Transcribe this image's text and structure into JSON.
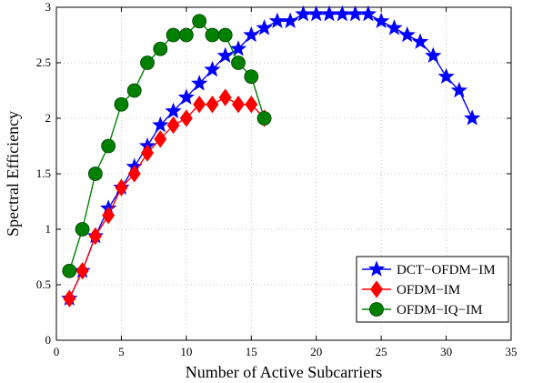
{
  "chart_data": {
    "type": "line",
    "xlabel": "Number of Active Subcarriers",
    "ylabel": "Spectral Efficiency",
    "xlim": [
      0,
      35
    ],
    "ylim": [
      0,
      3
    ],
    "xticks": [
      0,
      5,
      10,
      15,
      20,
      25,
      30,
      35
    ],
    "yticks": [
      0,
      0.5,
      1,
      1.5,
      2,
      2.5,
      3
    ],
    "grid": true,
    "legend_position": "lower-right",
    "series": [
      {
        "name": "DCT−OFDM−IM",
        "color": "#0000ff",
        "marker": "star",
        "x": [
          1,
          2,
          3,
          4,
          5,
          6,
          7,
          8,
          9,
          10,
          11,
          12,
          13,
          14,
          15,
          16,
          17,
          18,
          19,
          20,
          21,
          22,
          23,
          24,
          25,
          26,
          27,
          28,
          29,
          30,
          31,
          32
        ],
        "y": [
          0.375,
          0.625,
          0.938,
          1.188,
          1.375,
          1.563,
          1.75,
          1.938,
          2.063,
          2.188,
          2.313,
          2.438,
          2.563,
          2.625,
          2.75,
          2.813,
          2.875,
          2.875,
          2.938,
          2.938,
          2.938,
          2.938,
          2.938,
          2.938,
          2.875,
          2.813,
          2.75,
          2.688,
          2.563,
          2.375,
          2.25,
          2.0
        ]
      },
      {
        "name": "OFDM−IM",
        "color": "#ff0000",
        "marker": "diamond",
        "x": [
          1,
          2,
          3,
          4,
          5,
          6,
          7,
          8,
          9,
          10,
          11,
          12,
          13,
          14,
          15,
          16
        ],
        "y": [
          0.375,
          0.625,
          0.938,
          1.125,
          1.375,
          1.5,
          1.688,
          1.813,
          1.938,
          2.0,
          2.125,
          2.125,
          2.188,
          2.125,
          2.125,
          2.0
        ]
      },
      {
        "name": "OFDM−IQ−IM",
        "color": "#008000",
        "marker": "circle",
        "x": [
          1,
          2,
          3,
          4,
          5,
          6,
          7,
          8,
          9,
          10,
          11,
          12,
          13,
          14,
          15,
          16
        ],
        "y": [
          0.625,
          1.0,
          1.5,
          1.75,
          2.125,
          2.25,
          2.5,
          2.625,
          2.75,
          2.75,
          2.875,
          2.75,
          2.75,
          2.5,
          2.375,
          2.0
        ]
      }
    ]
  }
}
